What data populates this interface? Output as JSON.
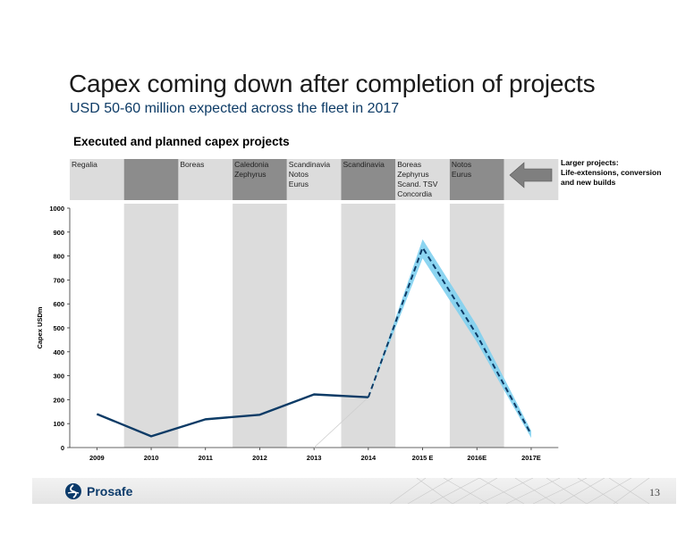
{
  "slide": {
    "title": "Capex coming down after completion of projects",
    "subtitle": "USD 50-60 million expected across the fleet in 2017",
    "chart_heading": "Executed and planned capex projects",
    "callout": [
      "Larger projects:",
      "Life-extensions, conversion",
      "and new builds"
    ],
    "page_number": "13",
    "logo_text": "Prosafe"
  },
  "colors": {
    "line": "#0d3b66",
    "band_blue": "#7fd0ef",
    "shade_dark": "#8c8c8c",
    "shade_light": "#dcdcdc"
  },
  "project_columns": [
    {
      "year": "2009",
      "projects": [
        "Regalia"
      ],
      "shade": "light"
    },
    {
      "year": "2010",
      "projects": [],
      "shade": "dark"
    },
    {
      "year": "2011",
      "projects": [
        "Boreas"
      ],
      "shade": "light"
    },
    {
      "year": "2012",
      "projects": [
        "Caledonia",
        "Zephyrus"
      ],
      "shade": "dark"
    },
    {
      "year": "2013",
      "projects": [
        "Scandinavia",
        "Notos",
        "Eurus"
      ],
      "shade": "light"
    },
    {
      "year": "2014",
      "projects": [
        "Scandinavia"
      ],
      "shade": "dark"
    },
    {
      "year": "2015 E",
      "projects": [
        "Boreas",
        "Zephyrus",
        "Scand. TSV",
        "Concordia"
      ],
      "shade": "light"
    },
    {
      "year": "2016E",
      "projects": [
        "Notos",
        "Eurus"
      ],
      "shade": "dark"
    },
    {
      "year": "2017E",
      "projects": [],
      "shade": "light"
    }
  ],
  "chart_data": {
    "type": "line",
    "title": "",
    "xlabel": "",
    "ylabel": "Capex USDm",
    "ylim": [
      0,
      1000
    ],
    "yticks": [
      0,
      100,
      200,
      300,
      400,
      500,
      600,
      700,
      800,
      900,
      1000
    ],
    "categories": [
      "2009",
      "2010",
      "2011",
      "2012",
      "2013",
      "2014",
      "2015 E",
      "2016E",
      "2017E"
    ],
    "series": [
      {
        "style": "solid",
        "values": [
          140,
          47,
          118,
          137,
          222,
          210,
          null,
          null,
          null
        ]
      },
      {
        "style": "dashed",
        "values": [
          null,
          null,
          null,
          null,
          null,
          210,
          835,
          470,
          55
        ]
      }
    ],
    "range_band": {
      "low": [
        null,
        null,
        null,
        null,
        null,
        210,
        790,
        440,
        40
      ],
      "high": [
        null,
        null,
        null,
        null,
        null,
        210,
        870,
        510,
        70
      ]
    },
    "grid": false,
    "legend": "none"
  }
}
